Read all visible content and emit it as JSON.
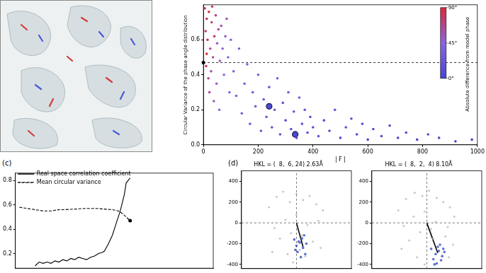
{
  "chart_data": [
    {
      "type": "scatter",
      "x_label": "| F |",
      "y_label": "Circular Variance of the phase angle distribution",
      "x": [
        5,
        12,
        20,
        8,
        30,
        15,
        25,
        40,
        35,
        10,
        45,
        50,
        55,
        18,
        60,
        28,
        70,
        65,
        75,
        80,
        22,
        48,
        90,
        38,
        85,
        95,
        58,
        100,
        12,
        32,
        110,
        120,
        130,
        140,
        150,
        160,
        170,
        180,
        190,
        200,
        210,
        220,
        230,
        240,
        250,
        260,
        270,
        280,
        290,
        300,
        310,
        320,
        330,
        340,
        350,
        360,
        370,
        380,
        390,
        400,
        420,
        440,
        460,
        480,
        500,
        520,
        540,
        560,
        580,
        600,
        620,
        650,
        680,
        710,
        740,
        780,
        820,
        860,
        920,
        980
      ],
      "values": [
        0.78,
        0.72,
        0.76,
        0.65,
        0.7,
        0.6,
        0.55,
        0.62,
        0.5,
        0.45,
        0.74,
        0.58,
        0.66,
        0.38,
        0.48,
        0.42,
        0.55,
        0.68,
        0.4,
        0.62,
        0.3,
        0.35,
        0.5,
        0.25,
        0.72,
        0.3,
        0.2,
        0.6,
        0.52,
        0.79,
        0.42,
        0.28,
        0.55,
        0.18,
        0.35,
        0.46,
        0.12,
        0.3,
        0.22,
        0.4,
        0.08,
        0.26,
        0.16,
        0.33,
        0.1,
        0.2,
        0.38,
        0.06,
        0.24,
        0.14,
        0.3,
        0.09,
        0.19,
        0.04,
        0.27,
        0.12,
        0.2,
        0.07,
        0.16,
        0.1,
        0.05,
        0.14,
        0.08,
        0.2,
        0.04,
        0.1,
        0.15,
        0.06,
        0.12,
        0.03,
        0.09,
        0.05,
        0.11,
        0.04,
        0.07,
        0.03,
        0.06,
        0.04,
        0.02,
        0.03
      ],
      "phase_diff": [
        85,
        80,
        88,
        75,
        70,
        82,
        65,
        72,
        60,
        78,
        68,
        55,
        62,
        70,
        50,
        58,
        48,
        60,
        45,
        52,
        64,
        50,
        44,
        55,
        58,
        40,
        46,
        42,
        90,
        76,
        40,
        35,
        38,
        30,
        32,
        36,
        25,
        28,
        30,
        33,
        20,
        26,
        22,
        30,
        18,
        24,
        32,
        15,
        22,
        18,
        26,
        14,
        20,
        10,
        24,
        15,
        18,
        12,
        16,
        12,
        10,
        14,
        8,
        18,
        6,
        10,
        12,
        6,
        10,
        5,
        8,
        5,
        10,
        4,
        6,
        3,
        5,
        4,
        3,
        2
      ],
      "highlighted": {
        "x": [
          240,
          335
        ],
        "values": [
          0.22,
          0.06
        ],
        "phase_diff": [
          5,
          3
        ]
      },
      "mean_line": 0.47,
      "colorbar": {
        "label": "Absolute difference from model phase",
        "range": [
          0,
          90
        ],
        "ticks": [
          {
            "value": 0,
            "label": "0°"
          },
          {
            "value": 45,
            "label": "45°"
          },
          {
            "value": 90,
            "label": "90°"
          }
        ],
        "colors": [
          "#4646d2",
          "#8c64dc",
          "#dc283c"
        ]
      },
      "xlim": [
        0,
        1000
      ],
      "xticks": [
        0,
        200,
        400,
        600,
        800,
        1000
      ],
      "ylim": [
        0,
        0.8
      ],
      "yticks": [
        {
          "value": 0,
          "label": "0.0"
        },
        0.2,
        0.4,
        0.6
      ],
      "grid": false
    },
    {
      "type": "line",
      "panel_label": "(c)",
      "series": [
        {
          "name": "Real space correlation coefficient",
          "color": "#000000",
          "line_style": "solid",
          "x": [
            10,
            12,
            14,
            16,
            18,
            20,
            22,
            24,
            26,
            28,
            30,
            32,
            34,
            36,
            38,
            40,
            42,
            44,
            45,
            47,
            49,
            51,
            53,
            55,
            56,
            58
          ],
          "values": [
            0.1,
            0.13,
            0.12,
            0.13,
            0.12,
            0.14,
            0.13,
            0.15,
            0.14,
            0.16,
            0.15,
            0.17,
            0.16,
            0.15,
            0.17,
            0.18,
            0.2,
            0.21,
            0.22,
            0.28,
            0.35,
            0.45,
            0.55,
            0.68,
            0.78,
            0.82
          ]
        },
        {
          "name": "Mean circular variance",
          "color": "#000000",
          "line_style": "dashed",
          "x": [
            2,
            6,
            10,
            14,
            18,
            22,
            25,
            30,
            35,
            41,
            45,
            49,
            52,
            54,
            56,
            58
          ],
          "values": [
            0.58,
            0.57,
            0.56,
            0.55,
            0.55,
            0.56,
            0.56,
            0.565,
            0.57,
            0.57,
            0.565,
            0.56,
            0.55,
            0.53,
            0.5,
            0.47
          ]
        }
      ],
      "xlim": [
        0,
        100
      ],
      "ylim": [
        0.08,
        0.86
      ],
      "yticks": [
        0.2,
        0.4,
        0.6,
        0.8
      ],
      "tick_labels": "y",
      "legend": "upper left",
      "grid": false
    },
    {
      "type": "scatter",
      "panel_label": "(d)",
      "title": "HKL = (  8,  6, 24) 2.63Å",
      "points": {
        "x": [
          -250,
          -180,
          -120,
          -60,
          0,
          60,
          120,
          180,
          240,
          -200,
          -100,
          0,
          100,
          200,
          -150,
          -50,
          50,
          150,
          -80,
          80,
          -30,
          30,
          -220,
          220
        ],
        "y": [
          150,
          250,
          300,
          200,
          280,
          220,
          260,
          180,
          120,
          -50,
          30,
          80,
          -20,
          20,
          -150,
          -100,
          -120,
          -180,
          -300,
          -320,
          -380,
          -260,
          -280,
          -240
        ],
        "color": "#c8c8c8"
      },
      "cluster": {
        "x": [
          -20,
          0,
          30,
          60,
          90,
          10,
          50,
          80,
          -10,
          40,
          70,
          20
        ],
        "y": [
          -160,
          -220,
          -190,
          -240,
          -200,
          -280,
          -150,
          -300,
          -260,
          -330,
          -120,
          -180
        ],
        "color": "#5a6ed2"
      },
      "vector": {
        "x": [
          0,
          60
        ],
        "y": [
          0,
          -230
        ],
        "color": "#000000"
      },
      "crosshair": {
        "x": 0,
        "y": 0
      },
      "xlim": [
        -500,
        500
      ],
      "ylim": [
        -440,
        500
      ],
      "yticks": [
        -400,
        -200,
        0,
        200,
        400
      ],
      "tick_labels": "y",
      "grid": false
    },
    {
      "type": "scatter",
      "title": "HKL = (  8,  2,  4) 8.10Å",
      "points": {
        "x": [
          -260,
          -190,
          -110,
          -40,
          20,
          90,
          150,
          210,
          250,
          -210,
          -120,
          -20,
          80,
          190,
          -160,
          -60,
          40,
          170,
          -90,
          60,
          -20,
          200,
          -230,
          240
        ],
        "y": [
          120,
          230,
          290,
          260,
          310,
          240,
          200,
          150,
          60,
          -30,
          60,
          110,
          10,
          -40,
          -170,
          -90,
          -60,
          -130,
          -330,
          -150,
          -400,
          -330,
          -250,
          -210
        ],
        "color": "#c8c8c8"
      },
      "cluster": {
        "x": [
          40,
          80,
          110,
          140,
          60,
          100,
          130,
          90,
          160,
          70,
          120,
          150
        ],
        "y": [
          -250,
          -300,
          -270,
          -320,
          -350,
          -230,
          -360,
          -390,
          -280,
          -400,
          -210,
          -250
        ],
        "color": "#5a6ed2"
      },
      "vector": {
        "x": [
          0,
          100
        ],
        "y": [
          0,
          -290
        ],
        "color": "#000000"
      },
      "crosshair": {
        "x": 0,
        "y": 0
      },
      "xlim": [
        -500,
        500
      ],
      "ylim": [
        -440,
        500
      ],
      "yticks": [
        -400,
        -200,
        0,
        200,
        400
      ],
      "tick_labels": "y",
      "grid": false
    }
  ]
}
